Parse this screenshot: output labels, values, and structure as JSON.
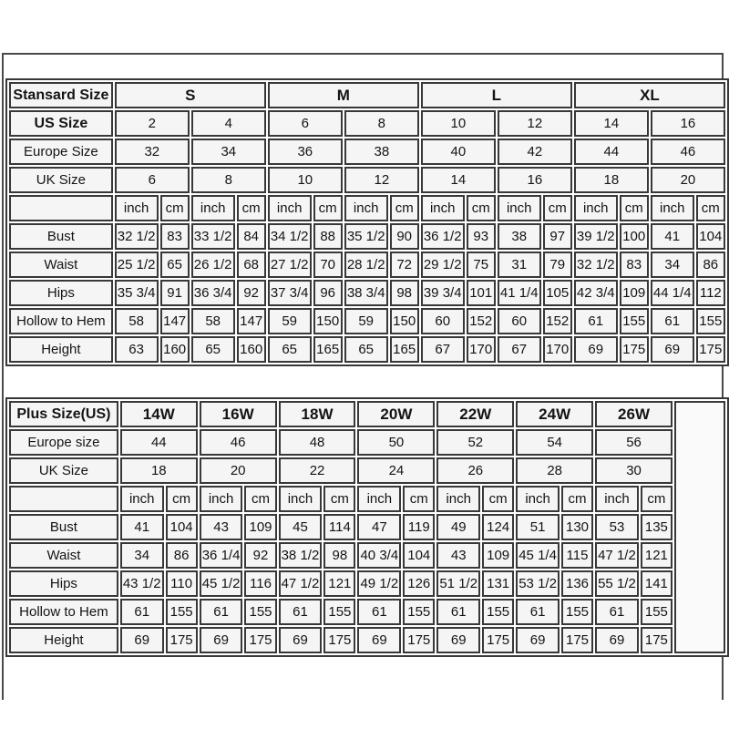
{
  "colors": {
    "border": "#383838",
    "outer_frame_border": "#4a4a4a",
    "cell_background": "#f5f5f5",
    "page_background": "#ffffff",
    "text": "#141414"
  },
  "standard_table": {
    "header_label": "Stansard Size",
    "header_bold": true,
    "size_groups": [
      "S",
      "M",
      "L",
      "XL"
    ],
    "size_rows": [
      {
        "label": "US Size",
        "bold": true,
        "values": [
          "2",
          "4",
          "6",
          "8",
          "10",
          "12",
          "14",
          "16"
        ]
      },
      {
        "label": "Europe Size",
        "bold": false,
        "values": [
          "32",
          "34",
          "36",
          "38",
          "40",
          "42",
          "44",
          "46"
        ]
      },
      {
        "label": "UK Size",
        "bold": false,
        "values": [
          "6",
          "8",
          "10",
          "12",
          "14",
          "16",
          "18",
          "20"
        ]
      }
    ],
    "unit_labels": [
      "inch",
      "cm"
    ],
    "unit_pair_count": 8,
    "measurement_rows": [
      {
        "label": "Bust",
        "values": [
          "32 1/2",
          "83",
          "33 1/2",
          "84",
          "34 1/2",
          "88",
          "35 1/2",
          "90",
          "36 1/2",
          "93",
          "38",
          "97",
          "39 1/2",
          "100",
          "41",
          "104"
        ]
      },
      {
        "label": "Waist",
        "values": [
          "25 1/2",
          "65",
          "26 1/2",
          "68",
          "27 1/2",
          "70",
          "28 1/2",
          "72",
          "29 1/2",
          "75",
          "31",
          "79",
          "32 1/2",
          "83",
          "34",
          "86"
        ]
      },
      {
        "label": "Hips",
        "values": [
          "35 3/4",
          "91",
          "36 3/4",
          "92",
          "37 3/4",
          "96",
          "38 3/4",
          "98",
          "39 3/4",
          "101",
          "41 1/4",
          "105",
          "42 3/4",
          "109",
          "44 1/4",
          "112"
        ]
      },
      {
        "label": "Hollow to Hem",
        "values": [
          "58",
          "147",
          "58",
          "147",
          "59",
          "150",
          "59",
          "150",
          "60",
          "152",
          "60",
          "152",
          "61",
          "155",
          "61",
          "155"
        ]
      },
      {
        "label": "Height",
        "values": [
          "63",
          "160",
          "65",
          "160",
          "65",
          "165",
          "65",
          "165",
          "67",
          "170",
          "67",
          "170",
          "69",
          "175",
          "69",
          "175"
        ]
      }
    ]
  },
  "plus_table": {
    "header_label": "Plus Size(US)",
    "header_bold": true,
    "size_groups": [
      "14W",
      "16W",
      "18W",
      "20W",
      "22W",
      "24W",
      "26W"
    ],
    "has_trailing_empty_column": true,
    "size_rows": [
      {
        "label": "Europe size",
        "bold": false,
        "values": [
          "44",
          "46",
          "48",
          "50",
          "52",
          "54",
          "56"
        ]
      },
      {
        "label": "UK Size",
        "bold": false,
        "values": [
          "18",
          "20",
          "22",
          "24",
          "26",
          "28",
          "30"
        ]
      }
    ],
    "unit_labels": [
      "inch",
      "cm"
    ],
    "unit_pair_count": 7,
    "measurement_rows": [
      {
        "label": "Bust",
        "values": [
          "41",
          "104",
          "43",
          "109",
          "45",
          "114",
          "47",
          "119",
          "49",
          "124",
          "51",
          "130",
          "53",
          "135"
        ]
      },
      {
        "label": "Waist",
        "values": [
          "34",
          "86",
          "36 1/4",
          "92",
          "38 1/2",
          "98",
          "40 3/4",
          "104",
          "43",
          "109",
          "45 1/4",
          "115",
          "47 1/2",
          "121"
        ]
      },
      {
        "label": "Hips",
        "values": [
          "43 1/2",
          "110",
          "45 1/2",
          "116",
          "47 1/2",
          "121",
          "49 1/2",
          "126",
          "51 1/2",
          "131",
          "53 1/2",
          "136",
          "55 1/2",
          "141"
        ]
      },
      {
        "label": "Hollow to Hem",
        "values": [
          "61",
          "155",
          "61",
          "155",
          "61",
          "155",
          "61",
          "155",
          "61",
          "155",
          "61",
          "155",
          "61",
          "155"
        ]
      },
      {
        "label": "Height",
        "values": [
          "69",
          "175",
          "69",
          "175",
          "69",
          "175",
          "69",
          "175",
          "69",
          "175",
          "69",
          "175",
          "69",
          "175"
        ]
      }
    ]
  }
}
